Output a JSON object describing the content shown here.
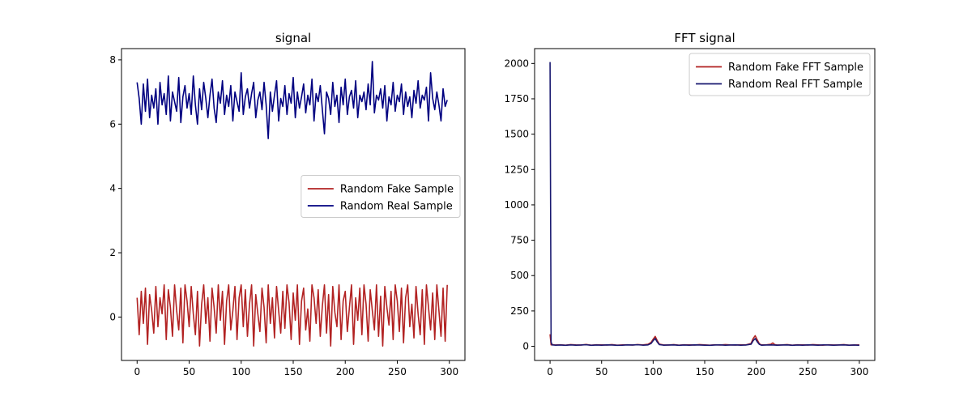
{
  "chart_data": [
    {
      "type": "line",
      "title": "signal",
      "xlabel": "",
      "ylabel": "",
      "xlim": [
        -15,
        315
      ],
      "ylim": [
        -1.35,
        8.35
      ],
      "xticks": [
        0,
        50,
        100,
        150,
        200,
        250,
        300
      ],
      "yticks": [
        0,
        2,
        4,
        6,
        8
      ],
      "grid": false,
      "legend_position": "center-right",
      "series": [
        {
          "name": "Random Fake Sample",
          "color": "#b22222",
          "x": [
            0,
            2,
            4,
            6,
            8,
            10,
            12,
            14,
            16,
            18,
            20,
            22,
            24,
            26,
            28,
            30,
            32,
            34,
            36,
            38,
            40,
            42,
            44,
            46,
            48,
            50,
            52,
            54,
            56,
            58,
            60,
            62,
            64,
            66,
            68,
            70,
            72,
            74,
            76,
            78,
            80,
            82,
            84,
            86,
            88,
            90,
            92,
            94,
            96,
            98,
            100,
            102,
            104,
            106,
            108,
            110,
            112,
            114,
            116,
            118,
            120,
            122,
            124,
            126,
            128,
            130,
            132,
            134,
            136,
            138,
            140,
            142,
            144,
            146,
            148,
            150,
            152,
            154,
            156,
            158,
            160,
            162,
            164,
            166,
            168,
            170,
            172,
            174,
            176,
            178,
            180,
            182,
            184,
            186,
            188,
            190,
            192,
            194,
            196,
            198,
            200,
            202,
            204,
            206,
            208,
            210,
            212,
            214,
            216,
            218,
            220,
            222,
            224,
            226,
            228,
            230,
            232,
            234,
            236,
            238,
            240,
            242,
            244,
            246,
            248,
            250,
            252,
            254,
            256,
            258,
            260,
            262,
            264,
            266,
            268,
            270,
            272,
            274,
            276,
            278,
            280,
            282,
            284,
            286,
            288,
            290,
            292,
            294,
            296,
            298
          ],
          "y": [
            0.6,
            -0.55,
            0.8,
            -0.2,
            0.9,
            -0.85,
            0.7,
            0.2,
            -0.5,
            0.95,
            -0.3,
            0.6,
            0.1,
            1.0,
            -0.7,
            0.85,
            0.3,
            -0.6,
            1.0,
            0.2,
            -0.4,
            0.9,
            -0.8,
            1.0,
            0.5,
            -0.3,
            0.95,
            0.1,
            -0.55,
            0.8,
            -0.9,
            0.4,
            1.0,
            -0.2,
            0.6,
            -0.75,
            0.9,
            0.3,
            -0.5,
            1.0,
            -0.1,
            0.8,
            -0.85,
            0.5,
            1.0,
            -0.4,
            0.2,
            0.95,
            -0.7,
            0.6,
            1.0,
            -0.3,
            0.85,
            -0.6,
            0.4,
            1.0,
            -0.9,
            0.7,
            0.1,
            -0.45,
            0.9,
            0.3,
            -0.8,
            1.0,
            -0.2,
            0.6,
            -0.65,
            0.95,
            0.2,
            -0.5,
            0.8,
            -0.35,
            1.0,
            0.45,
            -0.7,
            0.75,
            -0.1,
            1.0,
            -0.85,
            0.5,
            0.9,
            -0.4,
            0.25,
            -0.75,
            1.0,
            0.6,
            -0.2,
            0.85,
            -0.6,
            0.35,
            1.0,
            -0.5,
            0.7,
            -0.9,
            0.95,
            0.15,
            -0.3,
            1.0,
            -0.7,
            0.5,
            0.8,
            -0.45,
            0.3,
            1.0,
            -0.85,
            0.6,
            -0.1,
            0.9,
            -0.55,
            1.0,
            0.4,
            -0.75,
            0.85,
            0.2,
            -0.4,
            1.0,
            -0.6,
            0.65,
            -0.9,
            0.95,
            0.3,
            -0.25,
            0.8,
            -0.7,
            1.0,
            0.5,
            -0.45,
            0.9,
            -0.8,
            0.6,
            1.0,
            -0.3,
            0.4,
            -0.65,
            0.95,
            0.1,
            -0.55,
            0.85,
            -0.85,
            1.0,
            0.3,
            -0.4,
            0.75,
            -0.7,
            1.0,
            0.2,
            -0.6,
            0.9,
            -0.75,
            1.0
          ],
          "stroke_width": 1.6
        },
        {
          "name": "Random Real Sample",
          "color": "#000080",
          "x": [
            0,
            2,
            4,
            6,
            8,
            10,
            12,
            14,
            16,
            18,
            20,
            22,
            24,
            26,
            28,
            30,
            32,
            34,
            36,
            38,
            40,
            42,
            44,
            46,
            48,
            50,
            52,
            54,
            56,
            58,
            60,
            62,
            64,
            66,
            68,
            70,
            72,
            74,
            76,
            78,
            80,
            82,
            84,
            86,
            88,
            90,
            92,
            94,
            96,
            98,
            100,
            102,
            104,
            106,
            108,
            110,
            112,
            114,
            116,
            118,
            120,
            122,
            124,
            126,
            128,
            130,
            132,
            134,
            136,
            138,
            140,
            142,
            144,
            146,
            148,
            150,
            152,
            154,
            156,
            158,
            160,
            162,
            164,
            166,
            168,
            170,
            172,
            174,
            176,
            178,
            180,
            182,
            184,
            186,
            188,
            190,
            192,
            194,
            196,
            198,
            200,
            202,
            204,
            206,
            208,
            210,
            212,
            214,
            216,
            218,
            220,
            222,
            224,
            226,
            228,
            230,
            232,
            234,
            236,
            238,
            240,
            242,
            244,
            246,
            248,
            250,
            252,
            254,
            256,
            258,
            260,
            262,
            264,
            266,
            268,
            270,
            272,
            274,
            276,
            278,
            280,
            282,
            284,
            286,
            288,
            290,
            292,
            294,
            296,
            298
          ],
          "y": [
            7.3,
            6.8,
            6.0,
            7.25,
            6.4,
            7.4,
            6.2,
            6.9,
            6.5,
            7.1,
            6.0,
            7.3,
            6.6,
            6.95,
            6.3,
            7.5,
            6.1,
            7.0,
            6.7,
            6.4,
            7.45,
            6.05,
            6.85,
            7.2,
            6.5,
            6.95,
            6.3,
            7.5,
            6.6,
            6.0,
            7.1,
            6.45,
            7.3,
            6.8,
            6.2,
            6.9,
            7.4,
            6.5,
            6.05,
            7.0,
            6.65,
            7.35,
            6.3,
            6.9,
            6.55,
            7.2,
            6.1,
            7.0,
            6.7,
            6.4,
            7.6,
            6.3,
            6.85,
            7.1,
            6.5,
            6.95,
            7.3,
            6.2,
            6.75,
            7.0,
            6.45,
            7.3,
            6.6,
            5.55,
            7.0,
            6.4,
            6.9,
            7.35,
            6.1,
            6.8,
            6.55,
            7.2,
            6.3,
            6.95,
            6.65,
            7.45,
            6.2,
            7.0,
            6.5,
            6.85,
            7.25,
            6.35,
            6.9,
            6.6,
            7.4,
            6.1,
            6.95,
            6.7,
            7.2,
            6.45,
            5.7,
            7.0,
            6.8,
            6.3,
            7.3,
            6.55,
            6.9,
            6.05,
            7.15,
            6.6,
            7.4,
            6.3,
            6.85,
            7.05,
            6.5,
            7.35,
            6.2,
            6.9,
            6.7,
            7.0,
            6.45,
            7.25,
            6.6,
            7.95,
            6.35,
            6.9,
            6.75,
            7.1,
            6.5,
            7.2,
            6.1,
            6.85,
            6.6,
            7.3,
            6.4,
            6.9,
            6.7,
            7.25,
            6.3,
            7.0,
            6.55,
            6.85,
            6.2,
            7.05,
            6.65,
            7.35,
            6.5,
            6.9,
            6.75,
            7.15,
            6.1,
            7.6,
            6.8,
            6.45,
            7.0,
            6.6,
            6.1,
            7.1,
            6.55,
            6.75
          ],
          "stroke_width": 1.6
        }
      ]
    },
    {
      "type": "line",
      "title": "FFT signal",
      "xlabel": "",
      "ylabel": "",
      "xlim": [
        -15,
        315
      ],
      "ylim": [
        -100,
        2105
      ],
      "xticks": [
        0,
        50,
        100,
        150,
        200,
        250,
        300
      ],
      "yticks": [
        0,
        250,
        500,
        750,
        1000,
        1250,
        1500,
        1750,
        2000
      ],
      "grid": false,
      "legend_position": "top-right",
      "series": [
        {
          "name": "Random Fake FFT Sample",
          "color": "#b22222",
          "x": [
            0,
            1,
            2,
            5,
            10,
            15,
            20,
            25,
            30,
            35,
            40,
            45,
            50,
            55,
            60,
            65,
            70,
            75,
            80,
            85,
            90,
            95,
            98,
            100,
            102,
            104,
            106,
            110,
            115,
            120,
            125,
            130,
            135,
            140,
            145,
            150,
            155,
            160,
            165,
            170,
            175,
            180,
            185,
            190,
            195,
            197,
            199,
            201,
            203,
            205,
            210,
            214,
            216,
            218,
            220,
            225,
            230,
            235,
            240,
            245,
            250,
            255,
            260,
            265,
            270,
            275,
            280,
            285,
            290,
            295,
            300
          ],
          "y": [
            85,
            10,
            12,
            9,
            11,
            8,
            12,
            10,
            9,
            13,
            8,
            11,
            10,
            9,
            12,
            8,
            10,
            11,
            9,
            12,
            10,
            14,
            28,
            50,
            70,
            40,
            15,
            10,
            9,
            12,
            8,
            11,
            10,
            9,
            12,
            10,
            8,
            11,
            9,
            12,
            10,
            9,
            11,
            10,
            20,
            55,
            75,
            45,
            18,
            10,
            11,
            14,
            24,
            12,
            9,
            10,
            12,
            8,
            11,
            10,
            9,
            12,
            10,
            8,
            11,
            9,
            10,
            12,
            8,
            9,
            10
          ],
          "stroke_width": 1.6
        },
        {
          "name": "Random Real FFT Sample",
          "color": "#191970",
          "x": [
            0,
            1,
            2,
            5,
            10,
            15,
            20,
            25,
            30,
            35,
            40,
            45,
            50,
            55,
            60,
            65,
            70,
            75,
            80,
            85,
            90,
            95,
            98,
            100,
            102,
            104,
            106,
            110,
            115,
            120,
            125,
            130,
            135,
            140,
            145,
            150,
            155,
            160,
            165,
            170,
            175,
            180,
            185,
            190,
            195,
            197,
            199,
            201,
            203,
            205,
            210,
            215,
            220,
            225,
            230,
            235,
            240,
            245,
            250,
            255,
            260,
            265,
            270,
            275,
            280,
            285,
            290,
            295,
            300
          ],
          "y": [
            2010,
            30,
            10,
            8,
            9,
            7,
            10,
            8,
            9,
            11,
            7,
            9,
            8,
            10,
            9,
            7,
            8,
            10,
            9,
            11,
            8,
            10,
            20,
            40,
            55,
            30,
            12,
            8,
            9,
            10,
            7,
            9,
            8,
            10,
            9,
            8,
            7,
            9,
            10,
            8,
            9,
            10,
            8,
            9,
            15,
            40,
            55,
            32,
            14,
            8,
            9,
            10,
            8,
            9,
            10,
            7,
            9,
            8,
            10,
            9,
            8,
            10,
            9,
            8,
            9,
            10,
            8,
            9,
            7
          ],
          "stroke_width": 1.6
        }
      ]
    }
  ]
}
